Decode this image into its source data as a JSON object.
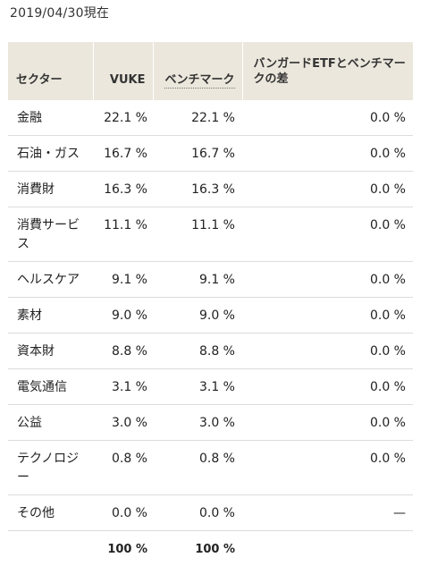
{
  "as_of": "2019/04/30現在",
  "table": {
    "headers": {
      "sector": "セクター",
      "fund": "VUKE",
      "benchmark": "ベンチマーク",
      "diff": "バンガードETFとベンチマークの差"
    },
    "rows": [
      {
        "sector": "金融",
        "fund": "22.1 %",
        "benchmark": "22.1 %",
        "diff": "0.0 %"
      },
      {
        "sector": "石油・ガス",
        "fund": "16.7 %",
        "benchmark": "16.7 %",
        "diff": "0.0 %"
      },
      {
        "sector": "消費財",
        "fund": "16.3 %",
        "benchmark": "16.3 %",
        "diff": "0.0 %"
      },
      {
        "sector": "消費サービス",
        "fund": "11.1 %",
        "benchmark": "11.1 %",
        "diff": "0.0 %"
      },
      {
        "sector": "ヘルスケア",
        "fund": "9.1 %",
        "benchmark": "9.1 %",
        "diff": "0.0 %"
      },
      {
        "sector": "素材",
        "fund": "9.0 %",
        "benchmark": "9.0 %",
        "diff": "0.0 %"
      },
      {
        "sector": "資本財",
        "fund": "8.8 %",
        "benchmark": "8.8 %",
        "diff": "0.0 %"
      },
      {
        "sector": "電気通信",
        "fund": "3.1 %",
        "benchmark": "3.1 %",
        "diff": "0.0 %"
      },
      {
        "sector": "公益",
        "fund": "3.0 %",
        "benchmark": "3.0 %",
        "diff": "0.0 %"
      },
      {
        "sector": "テクノロジー",
        "fund": "0.8 %",
        "benchmark": "0.8 %",
        "diff": "0.0 %"
      },
      {
        "sector": "その他",
        "fund": "0.0 %",
        "benchmark": "0.0 %",
        "diff": "—"
      }
    ],
    "total": {
      "sector": "",
      "fund": "100 %",
      "benchmark": "100 %",
      "diff": ""
    }
  }
}
